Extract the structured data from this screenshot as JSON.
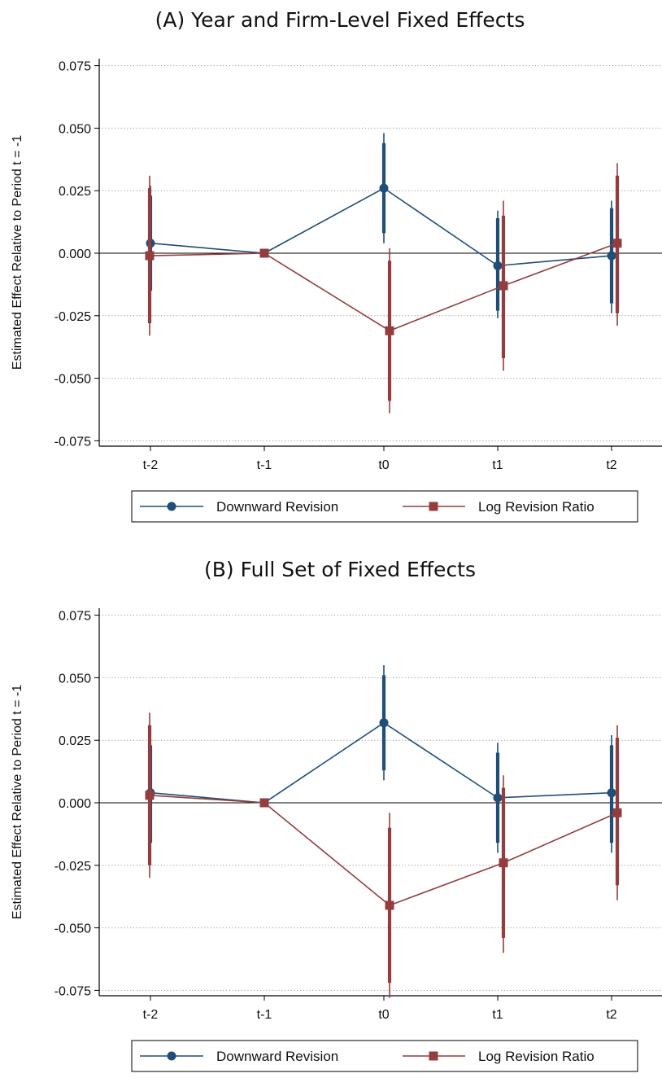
{
  "chart_data": [
    {
      "type": "line",
      "title": "(A) Year and Firm-Level Fixed Effects",
      "xlabel": "",
      "ylabel": "Estimated Effect Relative to Period t = -1",
      "ylim": [
        -0.08,
        0.08
      ],
      "yticks": [
        "0.075",
        "0.050",
        "0.025",
        "0.000",
        "-0.025",
        "-0.050",
        "-0.075"
      ],
      "categories": [
        "t-2",
        "t-1",
        "t0",
        "t1",
        "t2"
      ],
      "grid": true,
      "legend_position": "bottom",
      "series": [
        {
          "name": "Downward Revision",
          "color": "#1f4e79",
          "marker": "circle",
          "values": [
            0.004,
            0.0,
            0.026,
            -0.005,
            -0.001
          ],
          "ci_inner": [
            [
              -0.015,
              0.023
            ],
            [
              0,
              0
            ],
            [
              0.008,
              0.044
            ],
            [
              -0.023,
              0.014
            ],
            [
              -0.02,
              0.018
            ]
          ],
          "ci_outer": [
            [
              -0.019,
              0.027
            ],
            [
              0,
              0
            ],
            [
              0.004,
              0.048
            ],
            [
              -0.026,
              0.017
            ],
            [
              -0.024,
              0.021
            ]
          ]
        },
        {
          "name": "Log Revision Ratio",
          "color": "#943d3e",
          "marker": "square",
          "values": [
            -0.001,
            0.0,
            -0.031,
            -0.013,
            0.004
          ],
          "ci_inner": [
            [
              -0.028,
              0.026
            ],
            [
              0,
              0
            ],
            [
              -0.059,
              -0.003
            ],
            [
              -0.042,
              0.015
            ],
            [
              -0.024,
              0.031
            ]
          ],
          "ci_outer": [
            [
              -0.033,
              0.031
            ],
            [
              0,
              0
            ],
            [
              -0.064,
              0.002
            ],
            [
              -0.047,
              0.021
            ],
            [
              -0.029,
              0.036
            ]
          ]
        }
      ]
    },
    {
      "type": "line",
      "title": "(B) Full Set of Fixed Effects",
      "xlabel": "",
      "ylabel": "Estimated Effect Relative to Period t = -1",
      "ylim": [
        -0.08,
        0.08
      ],
      "yticks": [
        "0.075",
        "0.050",
        "0.025",
        "0.000",
        "-0.025",
        "-0.050",
        "-0.075"
      ],
      "categories": [
        "t-2",
        "t-1",
        "t0",
        "t1",
        "t2"
      ],
      "grid": true,
      "legend_position": "bottom",
      "series": [
        {
          "name": "Downward Revision",
          "color": "#1f4e79",
          "marker": "circle",
          "values": [
            0.004,
            0.0,
            0.032,
            0.002,
            0.004
          ],
          "ci_inner": [
            [
              -0.016,
              0.023
            ],
            [
              0,
              0
            ],
            [
              0.013,
              0.051
            ],
            [
              -0.016,
              0.02
            ],
            [
              -0.016,
              0.023
            ]
          ],
          "ci_outer": [
            [
              -0.02,
              0.027
            ],
            [
              0,
              0
            ],
            [
              0.009,
              0.055
            ],
            [
              -0.02,
              0.024
            ],
            [
              -0.02,
              0.027
            ]
          ]
        },
        {
          "name": "Log Revision Ratio",
          "color": "#943d3e",
          "marker": "square",
          "values": [
            0.003,
            0.0,
            -0.041,
            -0.024,
            -0.004
          ],
          "ci_inner": [
            [
              -0.025,
              0.031
            ],
            [
              0,
              0
            ],
            [
              -0.072,
              -0.01
            ],
            [
              -0.054,
              0.006
            ],
            [
              -0.033,
              0.026
            ]
          ],
          "ci_outer": [
            [
              -0.03,
              0.036
            ],
            [
              0,
              0
            ],
            [
              -0.078,
              -0.004
            ],
            [
              -0.06,
              0.011
            ],
            [
              -0.039,
              0.031
            ]
          ]
        }
      ]
    }
  ]
}
